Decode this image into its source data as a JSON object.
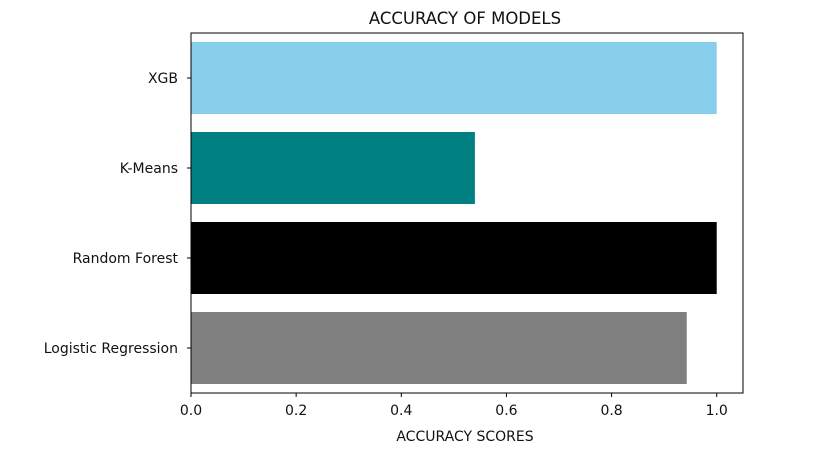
{
  "chart_data": {
    "type": "bar",
    "orientation": "horizontal",
    "title": "ACCURACY OF MODELS",
    "xlabel": "ACCURACY SCORES",
    "ylabel": "",
    "categories": [
      "XGB",
      "K-Means",
      "Random Forest",
      "Logistic Regression"
    ],
    "values": [
      1.0,
      0.54,
      1.0,
      0.943
    ],
    "colors": [
      "#87ceeb",
      "#008080",
      "#000000",
      "#808080"
    ],
    "xlim": [
      0.0,
      1.05
    ],
    "xticks": [
      0.0,
      0.2,
      0.4,
      0.6,
      0.8,
      1.0
    ],
    "xtick_labels": [
      "0.0",
      "0.2",
      "0.4",
      "0.6",
      "0.8",
      "1.0"
    ],
    "grid": false,
    "legend": "none"
  }
}
